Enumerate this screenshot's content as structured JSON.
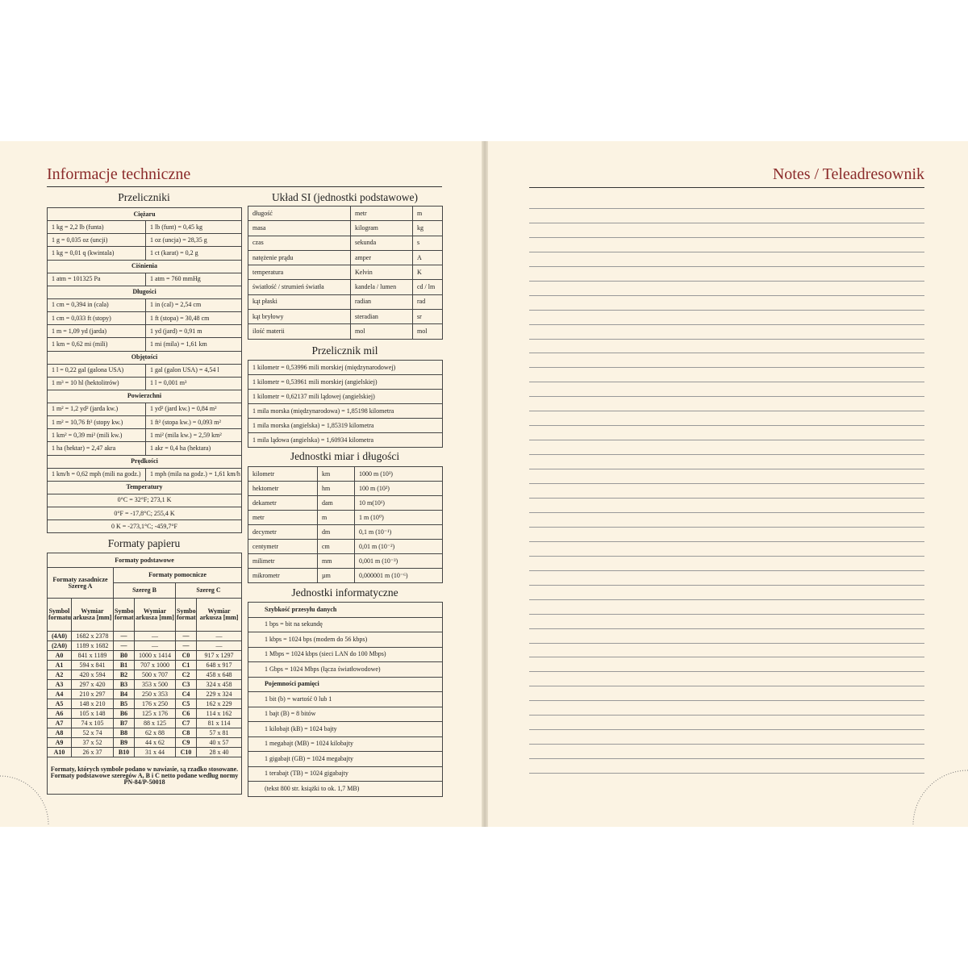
{
  "left": {
    "title": "Informacje techniczne",
    "conversions": {
      "heading": "Przeliczniki",
      "sections": [
        {
          "name": "Ciężaru",
          "rows": [
            [
              "1 kg = 2,2 lb (funta)",
              "1 lb (funt) = 0,45 kg"
            ],
            [
              "1 g = 0,035 oz (uncji)",
              "1 oz (uncja) = 28,35 g"
            ],
            [
              "1 kg = 0,01 q (kwintala)",
              "1 ct (karat) = 0,2 g"
            ]
          ]
        },
        {
          "name": "Ciśnienia",
          "rows": [
            [
              "1 atm = 101325 Pa",
              "1 atm = 760 mmHg"
            ]
          ]
        },
        {
          "name": "Długości",
          "rows": [
            [
              "1 cm = 0,394 in (cala)",
              "1 in (cal) = 2,54 cm"
            ],
            [
              "1 cm = 0,033 ft (stopy)",
              "1 ft (stopa) = 30,48 cm"
            ],
            [
              "1 m = 1,09 yd (jarda)",
              "1 yd (jard) = 0,91 m"
            ],
            [
              "1 km = 0,62 mi (mili)",
              "1 mi (mila) = 1,61 km"
            ]
          ]
        },
        {
          "name": "Objętości",
          "rows": [
            [
              "1 l = 0,22 gal (galona USA)",
              "1 gal (galon USA) = 4,54 l"
            ],
            [
              "1 m³ = 10 hl (hektolitrów)",
              "1 l = 0,001 m³"
            ]
          ]
        },
        {
          "name": "Powierzchni",
          "rows": [
            [
              "1 m² = 1,2 yd² (jarda kw.)",
              "1 yd² (jard kw.) = 0,84 m²"
            ],
            [
              "1 m² = 10,76 ft² (stopy kw.)",
              "1 ft² (stopa kw.) = 0,093 m²"
            ],
            [
              "1 km² = 0,39 mi² (mili kw.)",
              "1 mi² (mila kw.) = 2,59 km²"
            ],
            [
              "1 ha (hektar) = 2,47 akra",
              "1 akr = 0,4 ha (hektara)"
            ]
          ]
        },
        {
          "name": "Prędkości",
          "rows": [
            [
              "1 km/h = 0,62 mph (mili na godz.)",
              "1 mph (mila na godz.) = 1,61 km/h"
            ]
          ]
        },
        {
          "name": "Temperatury",
          "rows": [
            [
              "0°C = 32°F; 273,1 K"
            ],
            [
              "0°F = -17,8°C; 255,4 K"
            ],
            [
              "0 K = -273,1°C; -459,7°F"
            ]
          ]
        }
      ]
    },
    "paper": {
      "heading": "Formaty papieru",
      "basic": "Formaty podstawowe",
      "main": "Formaty zasadnicze Szereg A",
      "aux": "Formaty pomocnicze",
      "seriesB": "Szereg B",
      "seriesC": "Szereg C",
      "symbol": "Symbol formatu",
      "size": "Wymiar arkusza [mm]",
      "rows": [
        [
          "(4A0)",
          "1682 x 2378",
          "—",
          "—",
          "—",
          "—"
        ],
        [
          "(2A0)",
          "1189 x 1682",
          "—",
          "—",
          "—",
          "—"
        ],
        [
          "A0",
          "841 x 1189",
          "B0",
          "1000 x 1414",
          "C0",
          "917 x 1297"
        ],
        [
          "A1",
          "594 x 841",
          "B1",
          "707 x 1000",
          "C1",
          "648 x 917"
        ],
        [
          "A2",
          "420 x 594",
          "B2",
          "500 x 707",
          "C2",
          "458 x 648"
        ],
        [
          "A3",
          "297 x 420",
          "B3",
          "353 x 500",
          "C3",
          "324 x 458"
        ],
        [
          "A4",
          "210 x 297",
          "B4",
          "250 x 353",
          "C4",
          "229 x 324"
        ],
        [
          "A5",
          "148 x 210",
          "B5",
          "176 x 250",
          "C5",
          "162 x 229"
        ],
        [
          "A6",
          "105 x 148",
          "B6",
          "125 x 176",
          "C6",
          "114 x 162"
        ],
        [
          "A7",
          "74 x 105",
          "B7",
          "88 x 125",
          "C7",
          "81 x 114"
        ],
        [
          "A8",
          "52 x 74",
          "B8",
          "62 x 88",
          "C8",
          "57 x 81"
        ],
        [
          "A9",
          "37 x 52",
          "B9",
          "44 x 62",
          "C9",
          "40 x 57"
        ],
        [
          "A10",
          "26 x 37",
          "B10",
          "31 x 44",
          "C10",
          "28 x 40"
        ]
      ],
      "note": "Formaty, których symbole podano w nawiasie, są rzadko stosowane. Formaty podstawowe szeregów A, B i C netto podane według normy PN-84/P-50018"
    },
    "si": {
      "heading": "Układ SI (jednostki podstawowe)",
      "rows": [
        [
          "długość",
          "metr",
          "m"
        ],
        [
          "masa",
          "kilogram",
          "kg"
        ],
        [
          "czas",
          "sekunda",
          "s"
        ],
        [
          "natężenie prądu",
          "amper",
          "A"
        ],
        [
          "temperatura",
          "Kelvin",
          "K"
        ],
        [
          "światłość / strumień światła",
          "kandela / lumen",
          "cd / lm"
        ],
        [
          "kąt płaski",
          "radian",
          "rad"
        ],
        [
          "kąt bryłowy",
          "steradian",
          "sr"
        ],
        [
          "ilość materii",
          "mol",
          "mol"
        ]
      ]
    },
    "miles": {
      "heading": "Przelicznik mil",
      "rows": [
        "1 kilometr = 0,53996 mili morskiej (międzynarodowej)",
        "1 kilometr = 0,53961 mili morskiej (angielskiej)",
        "1 kilometr = 0,62137 mili lądowej (angielskiej)",
        "1 mila morska (międzynarodowa) = 1,85198 kilometra",
        "1 mila morska (angielska) = 1,85319 kilometra",
        "1 mila lądowa (angielska) = 1,60934 kilometra"
      ]
    },
    "units": {
      "heading": "Jednostki miar i długości",
      "rows": [
        [
          "kilometr",
          "km",
          "1000 m (10³)"
        ],
        [
          "hektometr",
          "hm",
          "100 m (10²)"
        ],
        [
          "dekametr",
          "dam",
          "10 m(10¹)"
        ],
        [
          "metr",
          "m",
          "1 m (10⁰)"
        ],
        [
          "decymetr",
          "dm",
          "0,1 m (10⁻¹)"
        ],
        [
          "centymetr",
          "cm",
          "0,01 m (10⁻²)"
        ],
        [
          "milimetr",
          "mm",
          "0,001 m (10⁻³)"
        ],
        [
          "mikrometr",
          "µm",
          "0,000001 m (10⁻⁶)"
        ]
      ]
    },
    "info": {
      "heading": "Jednostki informatyczne",
      "speed": "Szybkość przesyłu danych",
      "speed_rows": [
        "1 bps = bit na sekundę",
        "1 kbps = 1024 bps (modem do 56 kbps)",
        "1 Mbps = 1024 kbps (sieci LAN do 100 Mbps)",
        "1 Gbps = 1024 Mbps (łącza światłowodowe)"
      ],
      "memory": "Pojemności pamięci",
      "memory_rows": [
        "1 bit (b) = wartość 0 lub 1",
        "1 bajt (B) = 8 bitów",
        "1 kilobajt (kB) = 1024 bajty",
        "1 megabajt (MB) = 1024 kilobajty",
        "1 gigabajt (GB) = 1024 megabajty",
        "1 terabajt (TB) = 1024 gigabajty",
        "(tekst 800 str. książki to ok. 1,7 MB)"
      ]
    }
  },
  "right": {
    "title": "Notes / Teleadresownik"
  }
}
